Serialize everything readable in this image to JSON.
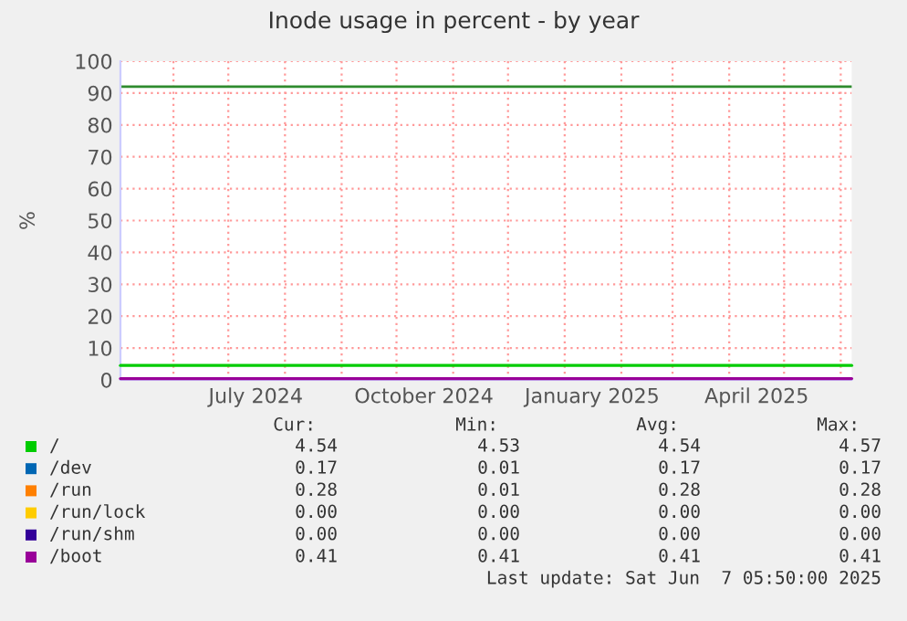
{
  "chart_data": {
    "type": "line",
    "title": "Inode usage in percent - by year",
    "ylabel": "%",
    "xlim": [
      "2024-05-03",
      "2025-06-07"
    ],
    "ylim": [
      0,
      100
    ],
    "xticks": [
      {
        "value": "2024-06-01",
        "label": null
      },
      {
        "value": "2024-07-01",
        "label": null
      },
      {
        "value": "2024-07-16",
        "label": "July 2024"
      },
      {
        "value": "2024-08-01",
        "label": null
      },
      {
        "value": "2024-09-01",
        "label": null
      },
      {
        "value": "2024-10-01",
        "label": null
      },
      {
        "value": "2024-10-16",
        "label": "October 2024"
      },
      {
        "value": "2024-11-01",
        "label": null
      },
      {
        "value": "2024-12-01",
        "label": null
      },
      {
        "value": "2025-01-01",
        "label": null
      },
      {
        "value": "2025-01-16",
        "label": "January 2025"
      },
      {
        "value": "2025-02-01",
        "label": null
      },
      {
        "value": "2025-03-01",
        "label": null
      },
      {
        "value": "2025-04-01",
        "label": null
      },
      {
        "value": "2025-04-16",
        "label": "April 2025"
      },
      {
        "value": "2025-05-01",
        "label": null
      },
      {
        "value": "2025-06-01",
        "label": null
      }
    ],
    "yticks": [
      0,
      10,
      20,
      30,
      40,
      50,
      60,
      70,
      80,
      90,
      100
    ],
    "grid": true,
    "legend": "bottom",
    "marker": "none",
    "line_style": "solid",
    "x": [
      "2024-05-03",
      "2025-06-07"
    ],
    "series": [
      {
        "name": "/",
        "color": "#00cc00",
        "values": [
          4.54,
          4.54
        ]
      },
      {
        "name": "/dev",
        "color": "#0066b3",
        "values": [
          null,
          null
        ]
      },
      {
        "name": "/run",
        "color": "#ff8000",
        "values": [
          null,
          null
        ]
      },
      {
        "name": "/run/lock",
        "color": "#ffcc00",
        "values": [
          null,
          null
        ]
      },
      {
        "name": "/run/shm",
        "color": "#330099",
        "values": [
          null,
          null
        ]
      },
      {
        "name": "/boot",
        "color": "#990099",
        "values": [
          0.41,
          0.41
        ]
      }
    ],
    "ref_lines": [
      {
        "axis": "y",
        "value": 92,
        "color": "#2e8b2e"
      }
    ],
    "annotations": [
      "Cur:",
      "Min:",
      "Avg:",
      "Max:",
      "4.54",
      "4.53",
      "4.54",
      "4.57",
      "0.17",
      "0.01",
      "0.17",
      "0.17",
      "0.28",
      "0.01",
      "0.28",
      "0.28",
      "0.00",
      "0.00",
      "0.00",
      "0.00",
      "0.00",
      "0.00",
      "0.00",
      "0.00",
      "0.41",
      "0.41",
      "0.41",
      "0.41",
      "Last update: Sat Jun  7 05:50:00 2025"
    ]
  }
}
